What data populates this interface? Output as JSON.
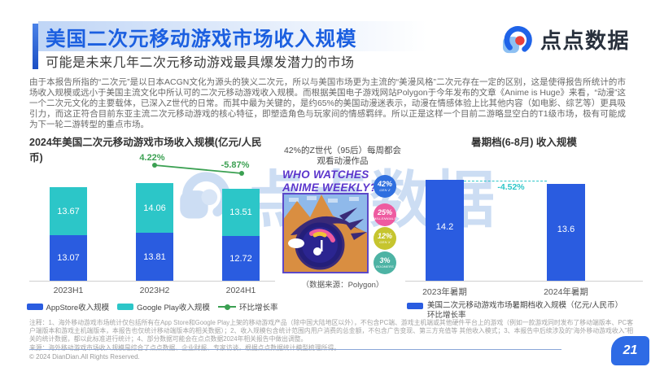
{
  "header": {
    "title": "美国二次元移动游戏市场收入规模",
    "subtitle": "可能是未来几年二次元移动游戏最具爆发潜力的市场",
    "logo_text": "点点数据"
  },
  "intro_paragraph": "由于本报告所指的“二次元”是以日本ACGN文化为源头的狭义二次元，所以与美国市场更为主流的“美漫风格”二次元存在一定的区别，这是使得报告所统计的市场收入规模或远小于美国主流文化中所认可的二次元移动游戏收入规模。而根据美国电子游戏网站Polygon于今年发布的文章《Anime is Huge》来看，“动漫”这一个二次元文化的主要载体，已深入Z世代的日常。而其中最为关键的，是约65%的美国动漫迷表示，动漫在情感体验上比其他内容（如电影、综艺等）更具吸引力，而这正符合目前东亚主流二次元移动游戏的核心特征，即塑造角色与玩家间的情感羁绊。所以正是这样一个目前二游略显空白的T1级市场，极有可能成为下一轮二游转型的重点市场。",
  "watermark": {
    "text": "点点数据"
  },
  "chart_data": [
    {
      "type": "bar",
      "title": "2024年美国二次元移动游戏市场收入规模(亿元/人民币)",
      "categories": [
        "2023H1",
        "2023H2",
        "2024H1"
      ],
      "series": [
        {
          "name": "AppStore收入规模",
          "color": "#2a5ce0",
          "values": [
            13.07,
            13.81,
            12.72
          ]
        },
        {
          "name": "Google Play收入规模",
          "color": "#2cc6c8",
          "values": [
            13.67,
            14.06,
            13.51
          ]
        }
      ],
      "growth_line": {
        "name": "环比增长率",
        "color": "#3ba052",
        "labels": [
          "4.22%",
          "-5.87%"
        ]
      },
      "ylim": [
        0,
        28
      ],
      "grid": false,
      "legend_position": "bottom"
    },
    {
      "type": "bar",
      "title": "暑期档(6-8月)  收入规模",
      "categories": [
        "2023年暑期",
        "2024年暑期"
      ],
      "values": [
        14.2,
        13.6
      ],
      "change_label": "-4.52%",
      "legend": [
        "美国二次元移动游戏市场暑期档收入规模（亿元/人民币）",
        "环比增长率"
      ],
      "ylim": [
        0,
        15
      ],
      "grid": false,
      "legend_position": "bottom"
    }
  ],
  "infographic": {
    "caption": "42%的Z世代（95后）每周都会观看动漫作品",
    "title_line1": "WHO WATCHES",
    "title_line2": "ANIME WEEKLY?",
    "stats": [
      {
        "value": "42%",
        "label": "GEN Z",
        "color": "#2f6fdf"
      },
      {
        "value": "25%",
        "label": "MILLENNIALS",
        "color": "#ee5ba0"
      },
      {
        "value": "12%",
        "label": "GEN X",
        "color": "#c6c52f"
      },
      {
        "value": "3%",
        "label": "BOOMERS",
        "color": "#4db3a4"
      }
    ],
    "source": "（数据来源：Polygon）"
  },
  "footnote": {
    "note": "注释：1、海外移动游戏市场统计仅包括所有在App Store和Google Play上架的移动游戏产品（除中国大陆地区以外），不包含PC端、游戏主机端或其他硬件平台上的游戏（例如一款游戏同时发布了移动端版本、PC客户端版本和游戏主机端版本，本报告也仅统计移动端版本的相关数据）；2、收入规模包含统计范围内用户消费的总金额，不包含广告变现、第三方充值等 其他收入模式；3、本报告中后续涉及的“海外移动游戏收入”相关的统计数据，都以此标准进行统计；4、部分数据可能会在点点数据2024年相关报告中做出调整。",
    "source": "来源：海外移动游戏市场收入规模是综合了点点数据、企业财报、专家访谈，根据点点数据统计模型梳理所得。"
  },
  "footer": {
    "copyright": "© 2024 DianDian.All Rights Reserved.",
    "page_number": "21"
  }
}
